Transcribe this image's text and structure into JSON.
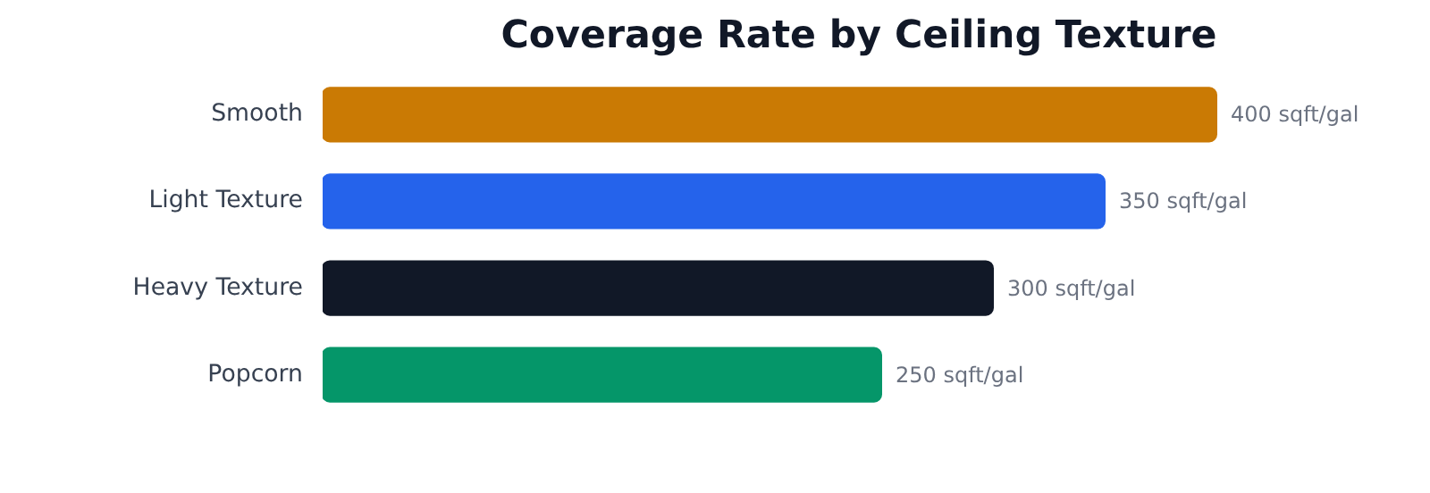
{
  "chart_data": {
    "type": "bar",
    "orientation": "horizontal",
    "title": "Coverage Rate by Ceiling Texture",
    "categories": [
      "Smooth",
      "Light Texture",
      "Heavy Texture",
      "Popcorn"
    ],
    "values": [
      400,
      350,
      300,
      250
    ],
    "colors": [
      "#ca7a04",
      "#2563eb",
      "#111827",
      "#059669"
    ],
    "value_labels": [
      "400 sqft/gal",
      "350 sqft/gal",
      "300 sqft/gal",
      "250 sqft/gal"
    ],
    "grid": false
  }
}
